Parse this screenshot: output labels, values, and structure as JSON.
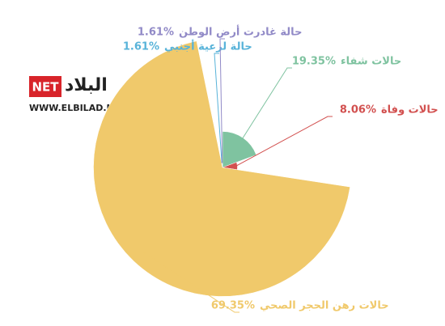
{
  "chart_data": {
    "type": "pie",
    "categories": [
      "حالات شفاء",
      "حالات وفاة",
      "حالات رهن الحجر الصحي",
      "حالة لرعية أجنبي",
      "حالة غادرت أرض الوطن"
    ],
    "values": [
      19.35,
      8.06,
      69.35,
      1.61,
      1.61
    ],
    "value_labels": [
      "19.35%",
      "8.06%",
      "69.35%",
      "1.61%",
      "1.61%"
    ],
    "colors": [
      "#7fc3a0",
      "#d2504f",
      "#f0c96b",
      "#58b3d9",
      "#918ac7"
    ]
  },
  "logo": {
    "brand": "البلاد",
    "suffix": "NET",
    "url": "WWW.ELBILAD.NET"
  }
}
